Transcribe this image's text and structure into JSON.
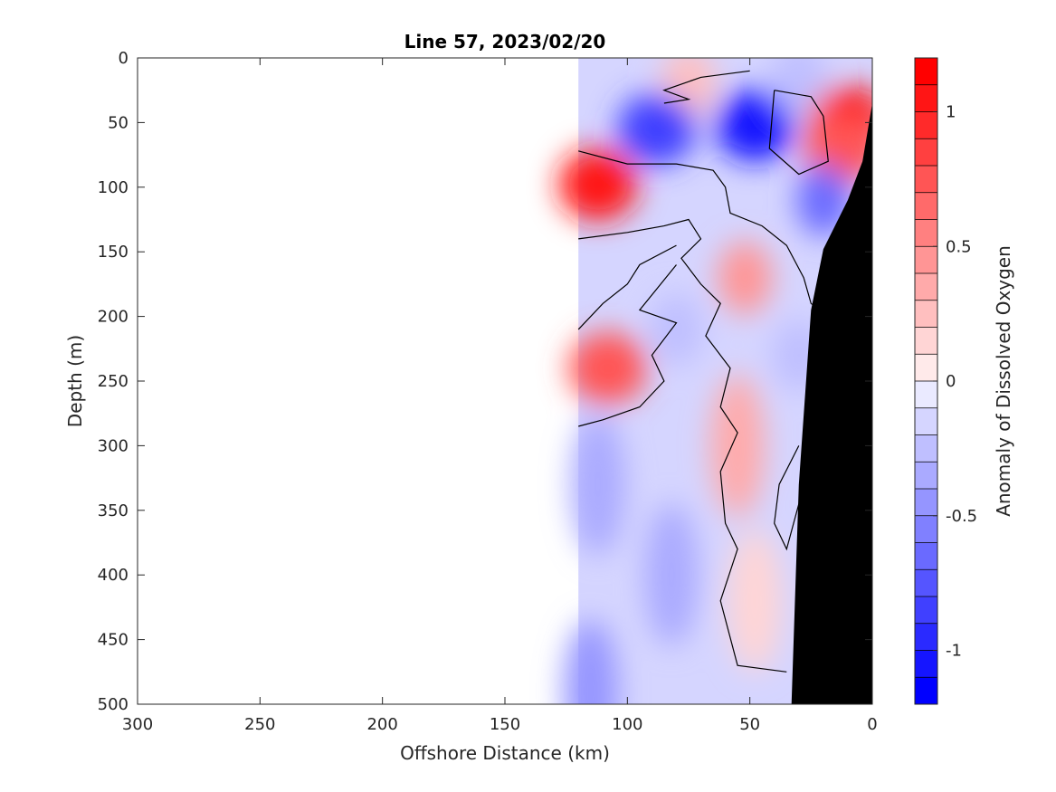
{
  "chart_data": {
    "type": "heatmap",
    "title": "Line 57, 2023/02/20",
    "xlabel": "Offshore Distance (km)",
    "ylabel": "Depth (m)",
    "xlim": [
      300,
      0
    ],
    "ylim": [
      0,
      500
    ],
    "x_reversed": true,
    "y_reversed": true,
    "x_ticks": [
      300,
      250,
      200,
      150,
      100,
      50,
      0
    ],
    "y_ticks": [
      0,
      50,
      100,
      150,
      200,
      250,
      300,
      350,
      400,
      450,
      500
    ],
    "data_extent_x": [
      120,
      0
    ],
    "colorbar": {
      "label": "Anomaly of Dissolved Oxygen",
      "range": [
        -1.2,
        1.2
      ],
      "ticks": [
        1,
        0.5,
        0,
        -0.5,
        -1
      ],
      "tick_labels": [
        "1",
        "0.5",
        "0",
        "-0.5",
        "-1"
      ],
      "levels": 24,
      "low_color": "#0000ff",
      "zero_color": "#ffffff",
      "high_color": "#ff0000"
    },
    "anomaly_features": [
      {
        "x": 112,
        "depth": 98,
        "value": 1.1
      },
      {
        "x": 10,
        "depth": 50,
        "value": 1.15
      },
      {
        "x": 12,
        "depth": 70,
        "value": 0.8
      },
      {
        "x": 108,
        "depth": 240,
        "value": 0.75
      },
      {
        "x": 52,
        "depth": 170,
        "value": 0.5
      },
      {
        "x": 55,
        "depth": 300,
        "value": 0.35
      },
      {
        "x": 48,
        "depth": 420,
        "value": 0.2
      },
      {
        "x": 75,
        "depth": 20,
        "value": 0.3
      },
      {
        "x": 48,
        "depth": 52,
        "value": -1.05
      },
      {
        "x": 88,
        "depth": 55,
        "value": -0.85
      },
      {
        "x": 20,
        "depth": 110,
        "value": -0.7
      },
      {
        "x": 80,
        "depth": 210,
        "value": -0.3
      },
      {
        "x": 112,
        "depth": 330,
        "value": -0.4
      },
      {
        "x": 82,
        "depth": 400,
        "value": -0.35
      },
      {
        "x": 30,
        "depth": 230,
        "value": -0.3
      },
      {
        "x": 115,
        "depth": 490,
        "value": -0.45
      },
      {
        "x": 30,
        "depth": 15,
        "value": -0.3
      }
    ],
    "seafloor_profile": [
      {
        "x": 0,
        "depth": 35
      },
      {
        "x": 4,
        "depth": 80
      },
      {
        "x": 10,
        "depth": 110
      },
      {
        "x": 20,
        "depth": 148
      },
      {
        "x": 25,
        "depth": 195
      },
      {
        "x": 30,
        "depth": 330
      },
      {
        "x": 33,
        "depth": 500
      }
    ]
  }
}
